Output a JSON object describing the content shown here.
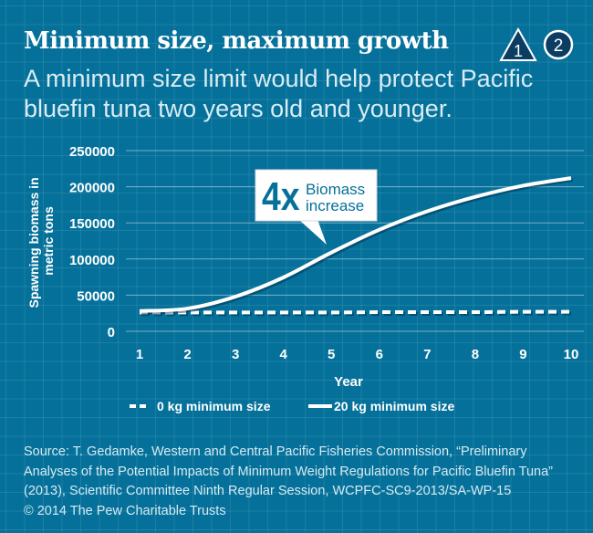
{
  "header": {
    "title": "Minimum size, maximum growth",
    "badge_1": "1",
    "badge_2": "2",
    "subtitle_line1": "A minimum size limit would help protect Pacific",
    "subtitle_line2": "bluefin tuna two years old and younger."
  },
  "chart_data": {
    "type": "line",
    "title": "",
    "xlabel": "Year",
    "ylabel_line1": "Spawning biomass in",
    "ylabel_line2": "metric tons",
    "x": [
      1,
      2,
      3,
      4,
      5,
      6,
      7,
      8,
      9,
      10
    ],
    "ylim": [
      0,
      250000
    ],
    "yticks": [
      0,
      50000,
      100000,
      150000,
      200000,
      250000
    ],
    "ytick_labels": [
      "0",
      "50000",
      "100000",
      "150000",
      "200000",
      "250000"
    ],
    "xtick_labels": [
      "1",
      "2",
      "3",
      "4",
      "5",
      "6",
      "7",
      "8",
      "9",
      "10"
    ],
    "grid": true,
    "legend_position": "bottom",
    "series": [
      {
        "name": "0 kg minimum size",
        "style": "dashed",
        "values": [
          26000,
          26000,
          26000,
          26000,
          26000,
          26500,
          26500,
          26500,
          27000,
          27000
        ]
      },
      {
        "name": "20 kg minimum size",
        "style": "solid",
        "values": [
          28000,
          31500,
          48000,
          74500,
          109000,
          140500,
          166000,
          186000,
          201500,
          212000
        ]
      }
    ],
    "annotation": {
      "big": "4x",
      "line1": "Biomass",
      "line2": "increase"
    },
    "colors": {
      "line": "#ffffff",
      "annotation_text": "#05719a"
    }
  },
  "source": {
    "line1": "Source: T. Gedamke, Western and Central Pacific Fisheries Commission, “Preliminary",
    "line2": "Analyses of the Potential Impacts of Minimum Weight Regulations for Pacific Bluefin Tuna”",
    "line3": "(2013), Scientific Committee Ninth Regular Session, WCPFC-SC9-2013/SA-WP-15",
    "line4": "© 2014 The Pew Charitable Trusts"
  }
}
